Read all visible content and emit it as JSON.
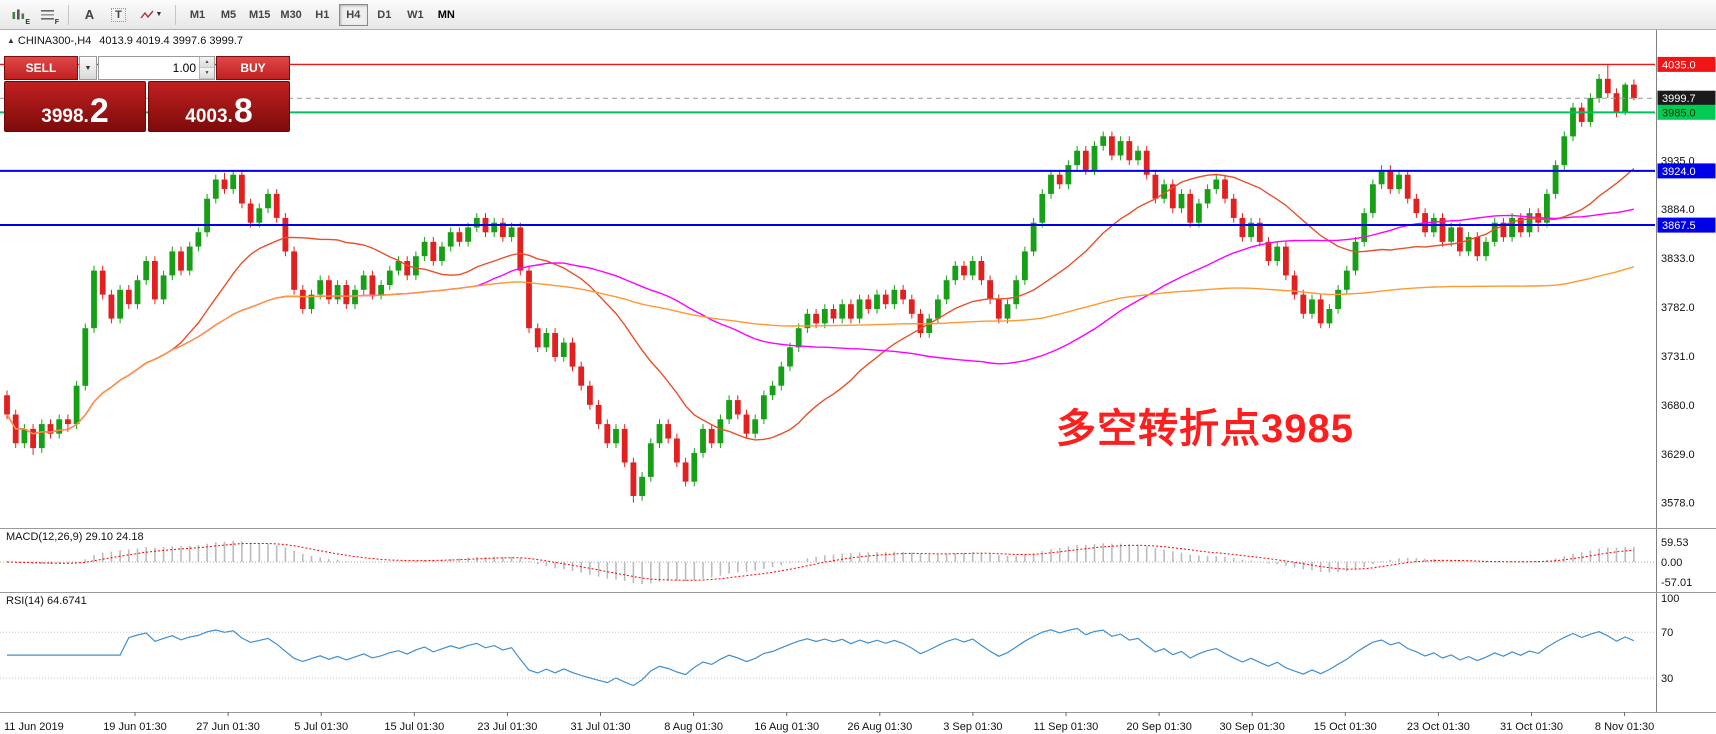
{
  "toolbar": {
    "icon_buttons": [
      {
        "name": "bar-chart-e-icon",
        "letter": "E"
      },
      {
        "name": "list-f-icon",
        "letter": "F"
      },
      {
        "name": "text-tool-icon",
        "letter": "A"
      },
      {
        "name": "template-tool-icon",
        "letter": "T"
      },
      {
        "name": "indicators-dropdown-icon",
        "letter": ""
      }
    ],
    "timeframes": [
      {
        "label": "M1"
      },
      {
        "label": "M5"
      },
      {
        "label": "M15"
      },
      {
        "label": "M30"
      },
      {
        "label": "H1"
      },
      {
        "label": "H4",
        "active": true
      },
      {
        "label": "D1"
      },
      {
        "label": "W1"
      },
      {
        "label": "MN",
        "bold": true
      }
    ]
  },
  "chart_header": {
    "symbol_tf": "CHINA300-,H4",
    "ohlc": "4013.9 4019.4 3997.6 3999.7"
  },
  "trade_panel": {
    "sell_label": "SELL",
    "buy_label": "BUY",
    "volume": "1.00",
    "sell_price_main": "3998.",
    "sell_price_big": "2",
    "buy_price_main": "4003.",
    "buy_price_big": "8",
    "accent": "#c02020",
    "accent_light": "#e04848"
  },
  "annotation": {
    "text": "多空转折点3985",
    "color": "#ff1e1e"
  },
  "chart_data": {
    "type": "candlestick",
    "symbol": "CHINA300-",
    "timeframe": "H4",
    "title": "CHINA300- H4",
    "ylim": [
      3560,
      4050
    ],
    "colors": {
      "up": "#16a016",
      "down": "#e22020"
    },
    "bid_line": {
      "value": 3999.7,
      "color": "#999999"
    },
    "levels": [
      {
        "value": 4035.0,
        "color": "#f01414",
        "width": 1.4
      },
      {
        "value": 3985.0,
        "color": "#00c060",
        "width": 2
      },
      {
        "value": 3924.0,
        "color": "#0000e8",
        "width": 2
      },
      {
        "value": 3867.5,
        "color": "#0000e8",
        "width": 2
      }
    ],
    "price_badges": [
      {
        "label": "4035.0",
        "value": 4035.0,
        "bg": "#f01414",
        "fg": "#ffffff"
      },
      {
        "label": "3999.7",
        "value": 3999.7,
        "bg": "#1a1a1a",
        "fg": "#ffffff"
      },
      {
        "label": "3985.0",
        "value": 3985.0,
        "bg": "#00cc55",
        "fg": "#003300"
      },
      {
        "label": "3924.0",
        "value": 3924.0,
        "bg": "#0000e8",
        "fg": "#ffffff"
      },
      {
        "label": "3867.5",
        "value": 3867.5,
        "bg": "#0000e8",
        "fg": "#ffffff"
      }
    ],
    "y_ticks": [
      {
        "label": "3935.0",
        "value": 3935.0
      },
      {
        "label": "3884.0",
        "value": 3884.0
      },
      {
        "label": "3833.0",
        "value": 3833.0
      },
      {
        "label": "3782.0",
        "value": 3782.0
      },
      {
        "label": "3731.0",
        "value": 3731.0
      },
      {
        "label": "3680.0",
        "value": 3680.0
      },
      {
        "label": "3629.0",
        "value": 3629.0
      },
      {
        "label": "3578.0",
        "value": 3578.0
      }
    ],
    "x_labels": [
      "11 Jun 2019",
      "19 Jun 01:30",
      "27 Jun 01:30",
      "5 Jul 01:30",
      "15 Jul 01:30",
      "23 Jul 01:30",
      "31 Jul 01:30",
      "8 Aug 01:30",
      "16 Aug 01:30",
      "26 Aug 01:30",
      "3 Sep 01:30",
      "11 Sep 01:30",
      "20 Sep 01:30",
      "30 Sep 01:30",
      "15 Oct 01:30",
      "23 Oct 01:30",
      "31 Oct 01:30",
      "8 Nov 01:30"
    ],
    "indicators": {
      "ma": [
        {
          "period": 20,
          "color": "#e8502d",
          "width": 1.4
        },
        {
          "period": 55,
          "color": "#ff00ff",
          "width": 1.4
        },
        {
          "period": 120,
          "color": "#ff9933",
          "width": 1.4
        }
      ],
      "macd": {
        "label": "MACD(12,26,9) 29.10 24.18",
        "params": [
          12,
          26,
          9
        ],
        "axis": [
          "59.53",
          "0.00",
          "-57.01"
        ],
        "histogram_color": "#bcbcbc",
        "signal_color": "#ff0000"
      },
      "rsi": {
        "label": "RSI(14) 64.6741",
        "period": 14,
        "axis": [
          "100",
          "70",
          "30"
        ],
        "levels": [
          70,
          30
        ],
        "line_color": "#3f8fd2"
      }
    },
    "candles": [
      [
        3690,
        3695,
        3665,
        3670
      ],
      [
        3670,
        3675,
        3635,
        3640
      ],
      [
        3640,
        3660,
        3635,
        3655
      ],
      [
        3655,
        3660,
        3628,
        3635
      ],
      [
        3635,
        3665,
        3630,
        3660
      ],
      [
        3660,
        3665,
        3645,
        3650
      ],
      [
        3650,
        3670,
        3645,
        3665
      ],
      [
        3665,
        3670,
        3652,
        3660
      ],
      [
        3660,
        3705,
        3655,
        3700
      ],
      [
        3700,
        3765,
        3695,
        3760
      ],
      [
        3760,
        3825,
        3755,
        3820
      ],
      [
        3820,
        3825,
        3790,
        3795
      ],
      [
        3795,
        3800,
        3765,
        3770
      ],
      [
        3770,
        3805,
        3765,
        3800
      ],
      [
        3800,
        3805,
        3780,
        3785
      ],
      [
        3785,
        3815,
        3780,
        3810
      ],
      [
        3810,
        3835,
        3805,
        3830
      ],
      [
        3830,
        3835,
        3785,
        3790
      ],
      [
        3790,
        3820,
        3785,
        3815
      ],
      [
        3815,
        3845,
        3810,
        3840
      ],
      [
        3840,
        3845,
        3815,
        3820
      ],
      [
        3820,
        3850,
        3815,
        3845
      ],
      [
        3845,
        3865,
        3840,
        3860
      ],
      [
        3860,
        3900,
        3855,
        3895
      ],
      [
        3895,
        3920,
        3890,
        3915
      ],
      [
        3915,
        3922,
        3900,
        3905
      ],
      [
        3905,
        3925,
        3900,
        3920
      ],
      [
        3920,
        3925,
        3885,
        3890
      ],
      [
        3890,
        3895,
        3865,
        3870
      ],
      [
        3870,
        3890,
        3865,
        3885
      ],
      [
        3885,
        3905,
        3880,
        3900
      ],
      [
        3900,
        3905,
        3870,
        3875
      ],
      [
        3875,
        3880,
        3835,
        3840
      ],
      [
        3840,
        3845,
        3795,
        3800
      ],
      [
        3800,
        3805,
        3775,
        3780
      ],
      [
        3780,
        3800,
        3775,
        3795
      ],
      [
        3795,
        3815,
        3790,
        3810
      ],
      [
        3810,
        3815,
        3785,
        3790
      ],
      [
        3790,
        3810,
        3785,
        3805
      ],
      [
        3805,
        3810,
        3780,
        3785
      ],
      [
        3785,
        3805,
        3780,
        3800
      ],
      [
        3800,
        3820,
        3795,
        3815
      ],
      [
        3815,
        3820,
        3790,
        3795
      ],
      [
        3795,
        3810,
        3790,
        3805
      ],
      [
        3805,
        3825,
        3800,
        3820
      ],
      [
        3820,
        3835,
        3815,
        3830
      ],
      [
        3830,
        3835,
        3810,
        3815
      ],
      [
        3815,
        3840,
        3810,
        3835
      ],
      [
        3835,
        3855,
        3830,
        3850
      ],
      [
        3850,
        3855,
        3825,
        3830
      ],
      [
        3830,
        3850,
        3825,
        3845
      ],
      [
        3845,
        3865,
        3840,
        3860
      ],
      [
        3860,
        3865,
        3845,
        3850
      ],
      [
        3850,
        3870,
        3845,
        3865
      ],
      [
        3865,
        3880,
        3860,
        3875
      ],
      [
        3875,
        3880,
        3855,
        3860
      ],
      [
        3860,
        3875,
        3855,
        3870
      ],
      [
        3870,
        3875,
        3850,
        3855
      ],
      [
        3855,
        3870,
        3850,
        3865
      ],
      [
        3865,
        3870,
        3815,
        3820
      ],
      [
        3820,
        3825,
        3755,
        3760
      ],
      [
        3760,
        3765,
        3735,
        3740
      ],
      [
        3740,
        3760,
        3735,
        3755
      ],
      [
        3755,
        3760,
        3725,
        3730
      ],
      [
        3730,
        3750,
        3725,
        3745
      ],
      [
        3745,
        3750,
        3715,
        3720
      ],
      [
        3720,
        3725,
        3695,
        3700
      ],
      [
        3700,
        3705,
        3675,
        3680
      ],
      [
        3680,
        3685,
        3655,
        3660
      ],
      [
        3660,
        3665,
        3635,
        3640
      ],
      [
        3640,
        3660,
        3635,
        3655
      ],
      [
        3655,
        3660,
        3615,
        3620
      ],
      [
        3620,
        3625,
        3578,
        3585
      ],
      [
        3585,
        3610,
        3580,
        3605
      ],
      [
        3605,
        3645,
        3600,
        3640
      ],
      [
        3640,
        3665,
        3635,
        3660
      ],
      [
        3660,
        3665,
        3640,
        3645
      ],
      [
        3645,
        3650,
        3615,
        3620
      ],
      [
        3620,
        3625,
        3595,
        3600
      ],
      [
        3600,
        3635,
        3595,
        3630
      ],
      [
        3630,
        3660,
        3625,
        3655
      ],
      [
        3655,
        3660,
        3635,
        3640
      ],
      [
        3640,
        3670,
        3635,
        3665
      ],
      [
        3665,
        3690,
        3660,
        3685
      ],
      [
        3685,
        3690,
        3665,
        3670
      ],
      [
        3670,
        3675,
        3645,
        3650
      ],
      [
        3650,
        3670,
        3645,
        3665
      ],
      [
        3665,
        3695,
        3660,
        3690
      ],
      [
        3690,
        3705,
        3685,
        3700
      ],
      [
        3700,
        3725,
        3695,
        3720
      ],
      [
        3720,
        3745,
        3715,
        3740
      ],
      [
        3740,
        3765,
        3735,
        3760
      ],
      [
        3760,
        3780,
        3755,
        3775
      ],
      [
        3775,
        3780,
        3760,
        3765
      ],
      [
        3765,
        3785,
        3760,
        3780
      ],
      [
        3780,
        3785,
        3765,
        3770
      ],
      [
        3770,
        3790,
        3765,
        3785
      ],
      [
        3785,
        3790,
        3765,
        3770
      ],
      [
        3770,
        3795,
        3765,
        3790
      ],
      [
        3790,
        3795,
        3775,
        3780
      ],
      [
        3780,
        3800,
        3775,
        3795
      ],
      [
        3795,
        3800,
        3780,
        3785
      ],
      [
        3785,
        3805,
        3780,
        3800
      ],
      [
        3800,
        3805,
        3785,
        3790
      ],
      [
        3790,
        3795,
        3770,
        3775
      ],
      [
        3775,
        3780,
        3750,
        3755
      ],
      [
        3755,
        3775,
        3750,
        3770
      ],
      [
        3770,
        3795,
        3765,
        3790
      ],
      [
        3790,
        3815,
        3785,
        3810
      ],
      [
        3810,
        3830,
        3805,
        3825
      ],
      [
        3825,
        3830,
        3810,
        3815
      ],
      [
        3815,
        3835,
        3810,
        3830
      ],
      [
        3830,
        3835,
        3805,
        3810
      ],
      [
        3810,
        3815,
        3785,
        3790
      ],
      [
        3790,
        3795,
        3765,
        3770
      ],
      [
        3770,
        3790,
        3765,
        3785
      ],
      [
        3785,
        3815,
        3780,
        3810
      ],
      [
        3810,
        3845,
        3805,
        3840
      ],
      [
        3840,
        3875,
        3835,
        3870
      ],
      [
        3870,
        3905,
        3865,
        3900
      ],
      [
        3900,
        3925,
        3895,
        3920
      ],
      [
        3920,
        3925,
        3905,
        3910
      ],
      [
        3910,
        3935,
        3905,
        3930
      ],
      [
        3930,
        3950,
        3925,
        3945
      ],
      [
        3945,
        3950,
        3920,
        3925
      ],
      [
        3925,
        3955,
        3920,
        3950
      ],
      [
        3950,
        3965,
        3945,
        3960
      ],
      [
        3960,
        3965,
        3935,
        3940
      ],
      [
        3940,
        3960,
        3935,
        3955
      ],
      [
        3955,
        3960,
        3930,
        3935
      ],
      [
        3935,
        3950,
        3930,
        3945
      ],
      [
        3945,
        3950,
        3915,
        3920
      ],
      [
        3920,
        3925,
        3890,
        3895
      ],
      [
        3895,
        3915,
        3890,
        3910
      ],
      [
        3910,
        3915,
        3880,
        3885
      ],
      [
        3885,
        3905,
        3880,
        3900
      ],
      [
        3900,
        3905,
        3865,
        3870
      ],
      [
        3870,
        3895,
        3865,
        3890
      ],
      [
        3890,
        3910,
        3885,
        3905
      ],
      [
        3905,
        3920,
        3900,
        3915
      ],
      [
        3915,
        3920,
        3890,
        3895
      ],
      [
        3895,
        3900,
        3870,
        3875
      ],
      [
        3875,
        3880,
        3850,
        3855
      ],
      [
        3855,
        3875,
        3850,
        3870
      ],
      [
        3870,
        3875,
        3845,
        3850
      ],
      [
        3850,
        3855,
        3825,
        3830
      ],
      [
        3830,
        3850,
        3825,
        3845
      ],
      [
        3845,
        3850,
        3810,
        3815
      ],
      [
        3815,
        3820,
        3790,
        3795
      ],
      [
        3795,
        3800,
        3770,
        3775
      ],
      [
        3775,
        3795,
        3770,
        3790
      ],
      [
        3790,
        3795,
        3760,
        3765
      ],
      [
        3765,
        3785,
        3760,
        3780
      ],
      [
        3780,
        3805,
        3775,
        3800
      ],
      [
        3800,
        3825,
        3795,
        3820
      ],
      [
        3820,
        3855,
        3815,
        3850
      ],
      [
        3850,
        3885,
        3845,
        3880
      ],
      [
        3880,
        3915,
        3875,
        3910
      ],
      [
        3910,
        3930,
        3905,
        3925
      ],
      [
        3925,
        3930,
        3900,
        3905
      ],
      [
        3905,
        3925,
        3900,
        3920
      ],
      [
        3920,
        3925,
        3890,
        3895
      ],
      [
        3895,
        3900,
        3875,
        3880
      ],
      [
        3880,
        3885,
        3855,
        3860
      ],
      [
        3860,
        3880,
        3855,
        3875
      ],
      [
        3875,
        3880,
        3845,
        3850
      ],
      [
        3850,
        3870,
        3845,
        3865
      ],
      [
        3865,
        3870,
        3835,
        3840
      ],
      [
        3840,
        3860,
        3835,
        3855
      ],
      [
        3855,
        3860,
        3830,
        3835
      ],
      [
        3835,
        3855,
        3830,
        3850
      ],
      [
        3850,
        3875,
        3845,
        3870
      ],
      [
        3870,
        3875,
        3850,
        3855
      ],
      [
        3855,
        3880,
        3850,
        3875
      ],
      [
        3875,
        3880,
        3855,
        3860
      ],
      [
        3860,
        3885,
        3855,
        3880
      ],
      [
        3880,
        3885,
        3860,
        3870
      ],
      [
        3870,
        3905,
        3865,
        3900
      ],
      [
        3900,
        3935,
        3895,
        3930
      ],
      [
        3930,
        3965,
        3925,
        3960
      ],
      [
        3960,
        3995,
        3955,
        3990
      ],
      [
        3990,
        3995,
        3970,
        3975
      ],
      [
        3975,
        4005,
        3970,
        4000
      ],
      [
        4000,
        4025,
        3995,
        4020
      ],
      [
        4020,
        4035,
        4000,
        4005
      ],
      [
        4005,
        4010,
        3980,
        3985
      ],
      [
        3985,
        4016,
        3982,
        4013.9
      ],
      [
        4013.9,
        4019.4,
        3997.6,
        3999.7
      ]
    ]
  }
}
